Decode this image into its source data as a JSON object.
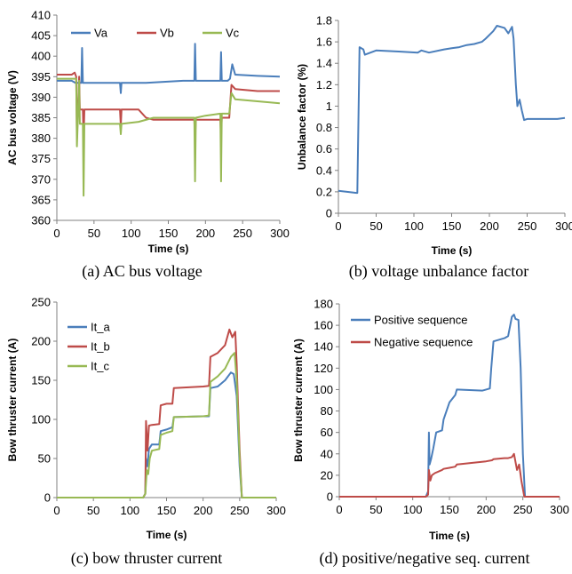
{
  "colors": {
    "blue": "#4a7ebb",
    "red": "#be4b48",
    "green": "#98b954"
  },
  "chart_data": [
    {
      "type": "line",
      "caption": "(a) AC bus voltage",
      "xlabel": "Time (s)",
      "ylabel": "AC bus voltage (V)",
      "xlim": [
        0,
        300
      ],
      "ylim": [
        360,
        410
      ],
      "xticks": [
        "0",
        "50",
        "100",
        "150",
        "200",
        "250",
        "300"
      ],
      "yticks": [
        "360",
        "365",
        "370",
        "375",
        "380",
        "385",
        "390",
        "395",
        "400",
        "405",
        "410"
      ],
      "legend_position": "top-inside",
      "series": [
        {
          "name": "Va",
          "color": "blue",
          "x": [
            0,
            20,
            25,
            33,
            34,
            35,
            36,
            60,
            85,
            86,
            87,
            120,
            170,
            185,
            186,
            187,
            220,
            221,
            222,
            230,
            233,
            236,
            240,
            270,
            300
          ],
          "y": [
            394,
            394,
            393.5,
            393.5,
            402,
            393.5,
            393.5,
            393.5,
            393.5,
            391,
            393.5,
            393.5,
            394,
            394,
            403,
            394,
            394,
            401,
            394,
            394,
            394.5,
            398,
            395.5,
            395.2,
            395
          ]
        },
        {
          "name": "Vb",
          "color": "red",
          "x": [
            0,
            20,
            24,
            26,
            27,
            30,
            31,
            35,
            36,
            37,
            60,
            85,
            86,
            87,
            110,
            120,
            130,
            185,
            186,
            187,
            200,
            220,
            221,
            222,
            232,
            235,
            240,
            270,
            300
          ],
          "y": [
            395.5,
            395.5,
            396,
            395,
            380,
            395,
            387,
            387,
            380,
            387,
            387,
            387,
            383,
            387,
            387,
            385,
            384.5,
            384.5,
            380,
            384.5,
            384.5,
            384.5,
            380,
            385,
            385,
            393,
            392,
            391.5,
            391.5
          ]
        },
        {
          "name": "Vc",
          "color": "green",
          "x": [
            0,
            20,
            24,
            26,
            27,
            30,
            31,
            35,
            36,
            37,
            60,
            85,
            86,
            87,
            110,
            130,
            150,
            170,
            185,
            186,
            187,
            200,
            220,
            221,
            222,
            232,
            235,
            240,
            270,
            300
          ],
          "y": [
            394.5,
            394.5,
            394.5,
            394.5,
            378,
            394,
            383.5,
            383.5,
            366,
            383.5,
            383.5,
            383.5,
            381,
            383.5,
            384,
            385,
            385,
            385,
            385,
            369.5,
            385,
            385.5,
            386,
            369.5,
            386,
            386,
            391,
            389.5,
            389,
            388.5
          ]
        }
      ]
    },
    {
      "type": "line",
      "caption": "(b) voltage unbalance factor",
      "xlabel": "Time (s)",
      "ylabel": "Unbalance  factor (%)",
      "xlim": [
        0,
        300
      ],
      "ylim": [
        0,
        1.8
      ],
      "xticks": [
        "0",
        "50",
        "100",
        "150",
        "200",
        "250",
        "300"
      ],
      "yticks": [
        "0",
        "0.2",
        "0.4",
        "0.6",
        "0.8",
        "1",
        "1.2",
        "1.4",
        "1.6",
        "1.8"
      ],
      "series": [
        {
          "color": "blue",
          "x": [
            0,
            24,
            25,
            28,
            33,
            35,
            50,
            80,
            105,
            110,
            120,
            140,
            150,
            160,
            170,
            180,
            190,
            195,
            205,
            210,
            220,
            225,
            230,
            232,
            235,
            237,
            240,
            243,
            246,
            250,
            270,
            290,
            300
          ],
          "y": [
            0.21,
            0.19,
            0.19,
            1.55,
            1.53,
            1.48,
            1.52,
            1.51,
            1.5,
            1.52,
            1.5,
            1.53,
            1.54,
            1.55,
            1.57,
            1.58,
            1.6,
            1.63,
            1.7,
            1.75,
            1.73,
            1.68,
            1.74,
            1.63,
            1.2,
            1.0,
            1.06,
            0.96,
            0.87,
            0.88,
            0.88,
            0.88,
            0.89
          ]
        }
      ]
    },
    {
      "type": "line",
      "caption": "(c) bow thruster current",
      "xlabel": "Time (s)",
      "ylabel": "Bow thruster current (A)",
      "xlim": [
        0,
        300
      ],
      "ylim": [
        0,
        250
      ],
      "xticks": [
        "0",
        "50",
        "100",
        "150",
        "200",
        "250",
        "300"
      ],
      "yticks": [
        "0",
        "50",
        "100",
        "150",
        "200",
        "250"
      ],
      "legend_position": "top-left-inside",
      "series": [
        {
          "name": "It_a",
          "color": "blue",
          "x": [
            0,
            118,
            121,
            122,
            124,
            126,
            130,
            140,
            142,
            150,
            158,
            160,
            200,
            208,
            210,
            220,
            230,
            238,
            242,
            246,
            250,
            253,
            300
          ],
          "y": [
            0,
            0,
            5,
            50,
            40,
            62,
            68,
            68,
            85,
            87,
            90,
            103,
            104,
            104,
            140,
            142,
            150,
            160,
            158,
            130,
            40,
            0,
            0
          ]
        },
        {
          "name": "It_b",
          "color": "red",
          "x": [
            0,
            118,
            121,
            122,
            124,
            126,
            130,
            140,
            142,
            150,
            158,
            160,
            200,
            208,
            210,
            220,
            230,
            236,
            240,
            244,
            246,
            250,
            253,
            300
          ],
          "y": [
            0,
            0,
            5,
            98,
            60,
            92,
            93,
            94,
            118,
            120,
            120,
            140,
            142,
            143,
            180,
            185,
            195,
            215,
            205,
            212,
            170,
            60,
            0,
            0
          ]
        },
        {
          "name": "It_c",
          "color": "green",
          "x": [
            0,
            118,
            121,
            123,
            125,
            127,
            130,
            140,
            142,
            150,
            158,
            160,
            200,
            208,
            210,
            220,
            230,
            238,
            243,
            246,
            250,
            253,
            300
          ],
          "y": [
            0,
            0,
            5,
            35,
            30,
            50,
            60,
            62,
            80,
            83,
            85,
            103,
            104,
            105,
            148,
            155,
            165,
            180,
            185,
            150,
            50,
            0,
            0
          ]
        }
      ]
    },
    {
      "type": "line",
      "caption": "(d) positive/negative seq. current",
      "xlabel": "Time (s)",
      "ylabel": "Bow thruster current (A)",
      "xlim": [
        0,
        300
      ],
      "ylim": [
        0,
        180
      ],
      "xticks": [
        "0",
        "50",
        "100",
        "150",
        "200",
        "250",
        "300"
      ],
      "yticks": [
        "0",
        "20",
        "40",
        "60",
        "80",
        "100",
        "120",
        "140",
        "160",
        "180"
      ],
      "legend_position": "top-left-inside",
      "series": [
        {
          "name": "Positive sequence",
          "color": "blue",
          "x": [
            0,
            118,
            121,
            122,
            123,
            125,
            128,
            132,
            140,
            142,
            150,
            158,
            160,
            195,
            200,
            205,
            207,
            210,
            225,
            230,
            235,
            238,
            240,
            244,
            247,
            250,
            253,
            300
          ],
          "y": [
            0,
            0,
            5,
            60,
            30,
            35,
            45,
            60,
            62,
            72,
            88,
            95,
            100,
            99,
            100,
            101,
            120,
            145,
            148,
            150,
            168,
            170,
            166,
            165,
            120,
            40,
            0,
            0
          ]
        },
        {
          "name": "Negative sequence",
          "color": "red",
          "x": [
            0,
            118,
            121,
            122,
            124,
            126,
            130,
            140,
            142,
            150,
            158,
            160,
            200,
            208,
            210,
            225,
            230,
            235,
            238,
            242,
            245,
            248,
            252,
            300
          ],
          "y": [
            0,
            0,
            2,
            25,
            15,
            20,
            22,
            25,
            26,
            27,
            28,
            30,
            33,
            34,
            35,
            36,
            36,
            37,
            40,
            25,
            30,
            15,
            0,
            0
          ]
        }
      ]
    }
  ]
}
